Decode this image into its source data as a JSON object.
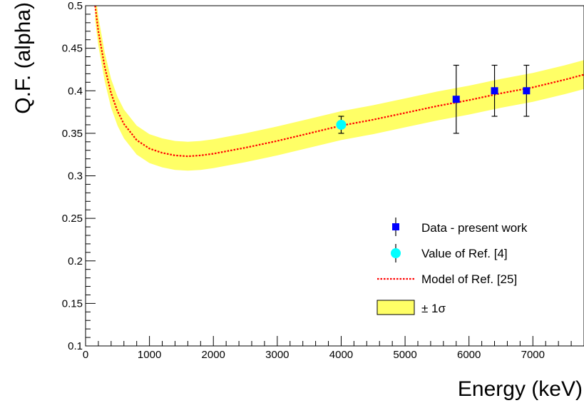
{
  "chart_data": {
    "type": "scatter",
    "title": "",
    "xlabel": "Energy (keV)",
    "ylabel": "Q.F. (alpha)",
    "xlim": [
      0,
      7800
    ],
    "ylim": [
      0.1,
      0.5
    ],
    "x_ticks": [
      0,
      1000,
      2000,
      3000,
      4000,
      5000,
      6000,
      7000
    ],
    "x_tick_labels": [
      "0",
      "1000",
      "2000",
      "3000",
      "4000",
      "5000",
      "6000",
      "7000"
    ],
    "y_ticks": [
      0.1,
      0.15,
      0.2,
      0.25,
      0.3,
      0.35,
      0.4,
      0.45,
      0.5
    ],
    "y_tick_labels": [
      "0.1",
      "0.15",
      "0.2",
      "0.25",
      "0.3",
      "0.35",
      "0.4",
      "0.45",
      "0.5"
    ],
    "grid": false,
    "legend_position": "bottom-right",
    "series": [
      {
        "name": "Data - present work",
        "type": "points-with-errorbars",
        "marker": "square",
        "color": "#0000ff",
        "points": [
          {
            "x": 5800,
            "y": 0.39,
            "yerr": 0.04
          },
          {
            "x": 6400,
            "y": 0.4,
            "yerr": 0.03
          },
          {
            "x": 6900,
            "y": 0.4,
            "yerr": 0.03
          }
        ]
      },
      {
        "name": "Value of Ref. [4]",
        "type": "points-with-errorbars",
        "marker": "circle",
        "color": "#00ffff",
        "points": [
          {
            "x": 4000,
            "y": 0.36,
            "yerr": 0.01
          }
        ]
      },
      {
        "name": "Model of Ref. [25]",
        "type": "line",
        "style": "dotted",
        "color": "#ff0000",
        "x": [
          150,
          200,
          300,
          400,
          500,
          600,
          800,
          1000,
          1200,
          1400,
          1600,
          1800,
          2000,
          2500,
          3000,
          3500,
          4000,
          4500,
          5000,
          5500,
          6000,
          6500,
          7000,
          7500,
          7800
        ],
        "y": [
          0.5,
          0.47,
          0.428,
          0.397,
          0.376,
          0.361,
          0.342,
          0.332,
          0.327,
          0.324,
          0.323,
          0.324,
          0.326,
          0.333,
          0.341,
          0.35,
          0.359,
          0.366,
          0.374,
          0.382,
          0.389,
          0.397,
          0.404,
          0.413,
          0.419
        ]
      },
      {
        "name": "± 1σ",
        "type": "band",
        "color": "#ffff66",
        "border_color": "#000000",
        "half_width": 0.017
      }
    ]
  }
}
